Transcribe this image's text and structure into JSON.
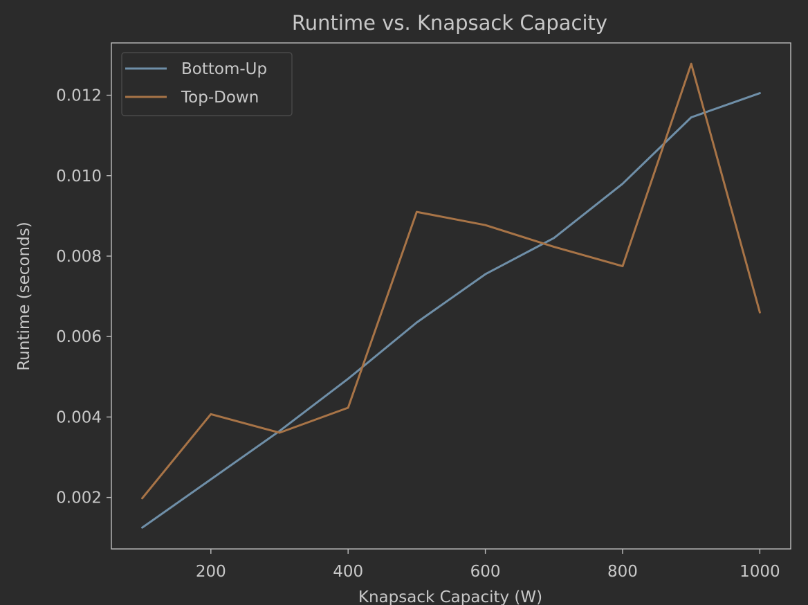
{
  "chart_data": {
    "type": "line",
    "title": "Runtime vs. Knapsack Capacity",
    "xlabel": "Knapsack Capacity (W)",
    "ylabel": "Runtime (seconds)",
    "x": [
      100,
      200,
      300,
      400,
      500,
      600,
      700,
      800,
      900,
      1000
    ],
    "xlim": [
      55,
      1045
    ],
    "ylim": [
      0.00072,
      0.0133
    ],
    "xticks": [
      200,
      400,
      600,
      800,
      1000
    ],
    "xtick_labels": [
      "200",
      "400",
      "600",
      "800",
      "1000"
    ],
    "yticks": [
      0.002,
      0.004,
      0.006,
      0.008,
      0.01,
      0.012
    ],
    "ytick_labels": [
      "0.002",
      "0.004",
      "0.006",
      "0.008",
      "0.010",
      "0.012"
    ],
    "grid": false,
    "legend_position": "top-left",
    "background": "#2b2b2b",
    "series": [
      {
        "name": "Bottom-Up",
        "color": "#6f8fa8",
        "values": [
          0.00125,
          0.00245,
          0.00365,
          0.00495,
          0.00635,
          0.00755,
          0.00845,
          0.0098,
          0.01145,
          0.01205
        ]
      },
      {
        "name": "Top-Down",
        "color": "#a87447",
        "values": [
          0.00198,
          0.00407,
          0.00361,
          0.00423,
          0.0091,
          0.00877,
          0.00823,
          0.00775,
          0.01278,
          0.0066
        ]
      }
    ]
  }
}
